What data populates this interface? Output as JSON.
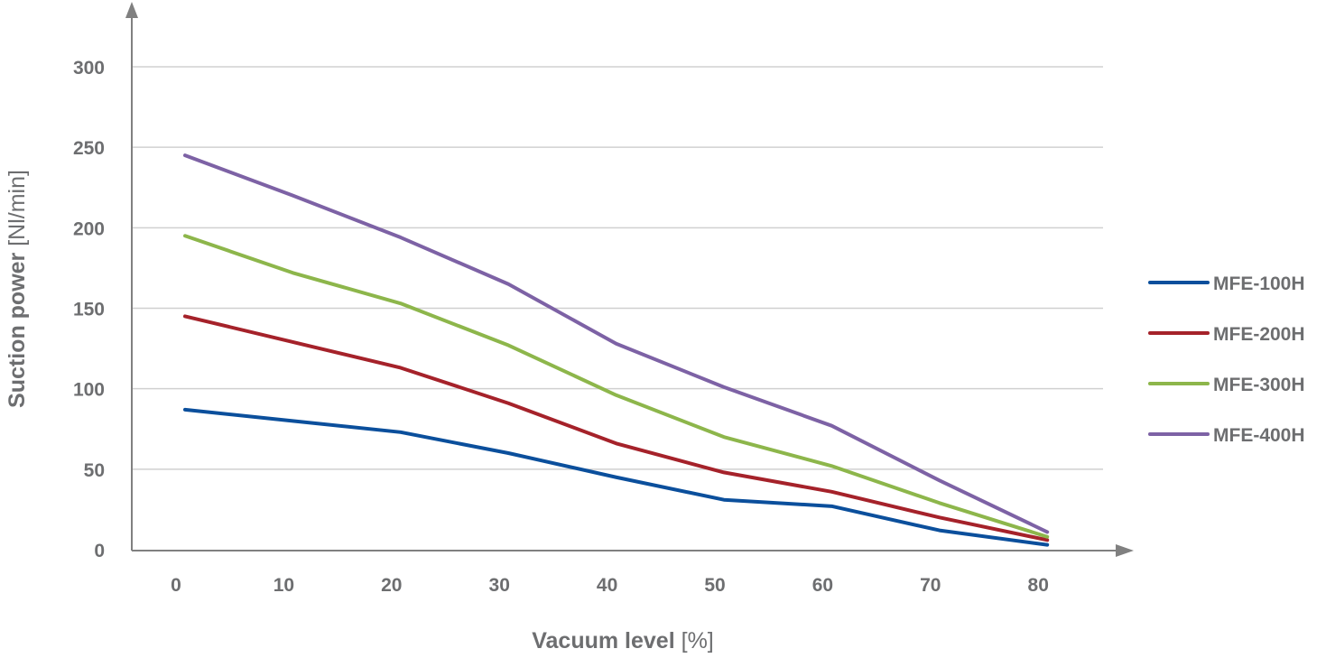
{
  "chart_data": {
    "type": "line",
    "title": "",
    "xlabel": "Vacuum level",
    "xlabel_unit": "[%]",
    "ylabel": "Suction power",
    "ylabel_unit": "[Nl/min]",
    "x": [
      0,
      10,
      20,
      30,
      40,
      50,
      60,
      70,
      80
    ],
    "xticks": [
      "0",
      "10",
      "20",
      "30",
      "40",
      "50",
      "60",
      "70",
      "80"
    ],
    "yticks": [
      "0",
      "50",
      "100",
      "150",
      "200",
      "250",
      "300"
    ],
    "ylim": [
      0,
      300
    ],
    "grid": true,
    "legend_position": "right",
    "series": [
      {
        "name": "MFE-100H",
        "color": "#0b4f9c",
        "values": [
          87,
          80,
          73,
          60,
          45,
          31,
          27,
          12,
          3
        ]
      },
      {
        "name": "MFE-200H",
        "color": "#a5222a",
        "values": [
          145,
          129,
          113,
          91,
          66,
          48,
          36,
          20,
          6
        ]
      },
      {
        "name": "MFE-300H",
        "color": "#8db64b",
        "values": [
          195,
          172,
          153,
          127,
          96,
          70,
          52,
          29,
          8
        ]
      },
      {
        "name": "MFE-400H",
        "color": "#7d62a5",
        "values": [
          245,
          220,
          194,
          165,
          128,
          101,
          77,
          43,
          11
        ]
      }
    ]
  }
}
